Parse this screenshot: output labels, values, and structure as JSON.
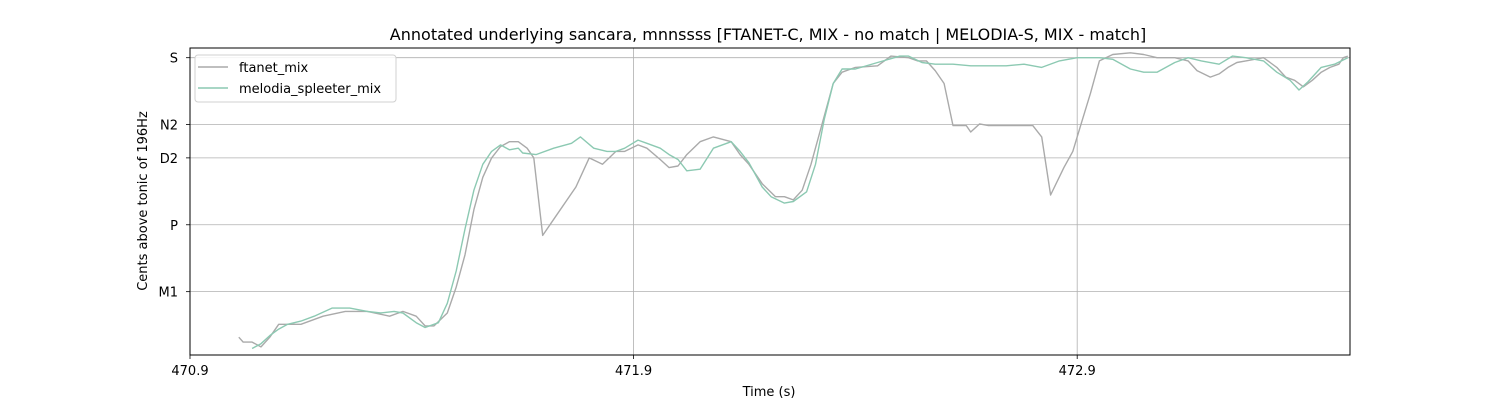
{
  "chart_data": {
    "type": "line",
    "title": "Annotated underlying sancara, mnnssss [FTANET-C, MIX - no match | MELODIA-S, MIX - match]",
    "xlabel": "Time (s)",
    "ylabel": "Cents above tonic of 196Hz",
    "xlim": [
      470.9,
      473.515
    ],
    "ylim": [
      -330,
      620
    ],
    "grid": true,
    "legend_position": "top-left",
    "x_ticks": [
      {
        "value": 470.9,
        "label": "470.9"
      },
      {
        "value": 471.9,
        "label": "471.9"
      },
      {
        "value": 472.9,
        "label": "472.9"
      }
    ],
    "y_ticks": [
      {
        "value": 590,
        "label": "S"
      },
      {
        "value": 383,
        "label": "N2"
      },
      {
        "value": 280,
        "label": "D2"
      },
      {
        "value": 73,
        "label": "P"
      },
      {
        "value": -134,
        "label": "M1"
      }
    ],
    "series": [
      {
        "name": "ftanet_mix",
        "color": "#aaaaaa",
        "points": [
          [
            471.01,
            -275
          ],
          [
            471.02,
            -290
          ],
          [
            471.04,
            -290
          ],
          [
            471.06,
            -305
          ],
          [
            471.08,
            -275
          ],
          [
            471.1,
            -235
          ],
          [
            471.15,
            -235
          ],
          [
            471.2,
            -210
          ],
          [
            471.25,
            -195
          ],
          [
            471.3,
            -195
          ],
          [
            471.35,
            -210
          ],
          [
            471.38,
            -195
          ],
          [
            471.41,
            -210
          ],
          [
            471.43,
            -240
          ],
          [
            471.45,
            -240
          ],
          [
            471.48,
            -200
          ],
          [
            471.5,
            -120
          ],
          [
            471.52,
            -20
          ],
          [
            471.54,
            120
          ],
          [
            471.56,
            220
          ],
          [
            471.58,
            280
          ],
          [
            471.6,
            315
          ],
          [
            471.62,
            330
          ],
          [
            471.64,
            330
          ],
          [
            471.66,
            310
          ],
          [
            471.675,
            280
          ],
          [
            471.695,
            40
          ],
          [
            471.72,
            90
          ],
          [
            471.77,
            190
          ],
          [
            471.8,
            280
          ],
          [
            471.83,
            260
          ],
          [
            471.86,
            300
          ],
          [
            471.88,
            300
          ],
          [
            471.91,
            320
          ],
          [
            471.93,
            310
          ],
          [
            471.96,
            275
          ],
          [
            471.98,
            250
          ],
          [
            472.0,
            255
          ],
          [
            472.02,
            290
          ],
          [
            472.05,
            330
          ],
          [
            472.08,
            345
          ],
          [
            472.12,
            330
          ],
          [
            472.14,
            290
          ],
          [
            472.16,
            260
          ],
          [
            472.19,
            200
          ],
          [
            472.22,
            160
          ],
          [
            472.24,
            160
          ],
          [
            472.26,
            150
          ],
          [
            472.28,
            180
          ],
          [
            472.3,
            260
          ],
          [
            472.33,
            410
          ],
          [
            472.35,
            510
          ],
          [
            472.37,
            545
          ],
          [
            472.4,
            560
          ],
          [
            472.45,
            565
          ],
          [
            472.48,
            595
          ],
          [
            472.52,
            590
          ],
          [
            472.54,
            580
          ],
          [
            472.56,
            580
          ],
          [
            472.58,
            550
          ],
          [
            472.6,
            510
          ],
          [
            472.62,
            380
          ],
          [
            472.65,
            380
          ],
          [
            472.66,
            360
          ],
          [
            472.68,
            385
          ],
          [
            472.7,
            380
          ],
          [
            472.75,
            380
          ],
          [
            472.78,
            380
          ],
          [
            472.8,
            380
          ],
          [
            472.82,
            345
          ],
          [
            472.84,
            165
          ],
          [
            472.87,
            250
          ],
          [
            472.89,
            300
          ],
          [
            472.91,
            390
          ],
          [
            472.93,
            480
          ],
          [
            472.95,
            580
          ],
          [
            472.98,
            600
          ],
          [
            473.02,
            605
          ],
          [
            473.05,
            600
          ],
          [
            473.08,
            590
          ],
          [
            473.12,
            590
          ],
          [
            473.15,
            580
          ],
          [
            473.17,
            550
          ],
          [
            473.2,
            530
          ],
          [
            473.22,
            540
          ],
          [
            473.24,
            560
          ],
          [
            473.26,
            575
          ],
          [
            473.28,
            580
          ],
          [
            473.32,
            590
          ],
          [
            473.35,
            560
          ],
          [
            473.37,
            530
          ],
          [
            473.39,
            520
          ],
          [
            473.41,
            500
          ],
          [
            473.43,
            520
          ],
          [
            473.45,
            545
          ],
          [
            473.47,
            560
          ],
          [
            473.49,
            570
          ],
          [
            473.5,
            590
          ],
          [
            473.51,
            595
          ]
        ]
      },
      {
        "name": "melodia_spleeter_mix",
        "color": "#8cc9b2",
        "points": [
          [
            471.04,
            -310
          ],
          [
            471.06,
            -295
          ],
          [
            471.08,
            -270
          ],
          [
            471.1,
            -250
          ],
          [
            471.12,
            -235
          ],
          [
            471.15,
            -225
          ],
          [
            471.18,
            -210
          ],
          [
            471.22,
            -185
          ],
          [
            471.26,
            -185
          ],
          [
            471.3,
            -195
          ],
          [
            471.33,
            -200
          ],
          [
            471.36,
            -195
          ],
          [
            471.38,
            -200
          ],
          [
            471.41,
            -230
          ],
          [
            471.43,
            -245
          ],
          [
            471.46,
            -230
          ],
          [
            471.48,
            -170
          ],
          [
            471.5,
            -70
          ],
          [
            471.52,
            60
          ],
          [
            471.54,
            180
          ],
          [
            471.56,
            260
          ],
          [
            471.58,
            300
          ],
          [
            471.6,
            320
          ],
          [
            471.62,
            305
          ],
          [
            471.64,
            310
          ],
          [
            471.65,
            295
          ],
          [
            471.68,
            290
          ],
          [
            471.72,
            310
          ],
          [
            471.76,
            325
          ],
          [
            471.78,
            345
          ],
          [
            471.81,
            310
          ],
          [
            471.84,
            300
          ],
          [
            471.86,
            300
          ],
          [
            471.88,
            310
          ],
          [
            471.91,
            335
          ],
          [
            471.93,
            325
          ],
          [
            471.96,
            310
          ],
          [
            471.98,
            290
          ],
          [
            472.0,
            275
          ],
          [
            472.02,
            240
          ],
          [
            472.05,
            245
          ],
          [
            472.08,
            310
          ],
          [
            472.12,
            330
          ],
          [
            472.14,
            300
          ],
          [
            472.16,
            265
          ],
          [
            472.19,
            190
          ],
          [
            472.21,
            160
          ],
          [
            472.24,
            140
          ],
          [
            472.26,
            145
          ],
          [
            472.29,
            175
          ],
          [
            472.31,
            260
          ],
          [
            472.33,
            400
          ],
          [
            472.35,
            510
          ],
          [
            472.37,
            555
          ],
          [
            472.4,
            555
          ],
          [
            472.45,
            575
          ],
          [
            472.5,
            595
          ],
          [
            472.52,
            595
          ],
          [
            472.55,
            575
          ],
          [
            472.58,
            570
          ],
          [
            472.62,
            570
          ],
          [
            472.66,
            565
          ],
          [
            472.7,
            565
          ],
          [
            472.74,
            565
          ],
          [
            472.78,
            570
          ],
          [
            472.82,
            560
          ],
          [
            472.86,
            580
          ],
          [
            472.9,
            590
          ],
          [
            472.95,
            590
          ],
          [
            472.98,
            585
          ],
          [
            473.02,
            555
          ],
          [
            473.05,
            545
          ],
          [
            473.08,
            545
          ],
          [
            473.12,
            575
          ],
          [
            473.15,
            590
          ],
          [
            473.18,
            580
          ],
          [
            473.22,
            570
          ],
          [
            473.25,
            595
          ],
          [
            473.28,
            590
          ],
          [
            473.32,
            580
          ],
          [
            473.35,
            545
          ],
          [
            473.38,
            520
          ],
          [
            473.4,
            490
          ],
          [
            473.42,
            515
          ],
          [
            473.45,
            560
          ],
          [
            473.48,
            570
          ],
          [
            473.51,
            590
          ]
        ]
      }
    ]
  }
}
